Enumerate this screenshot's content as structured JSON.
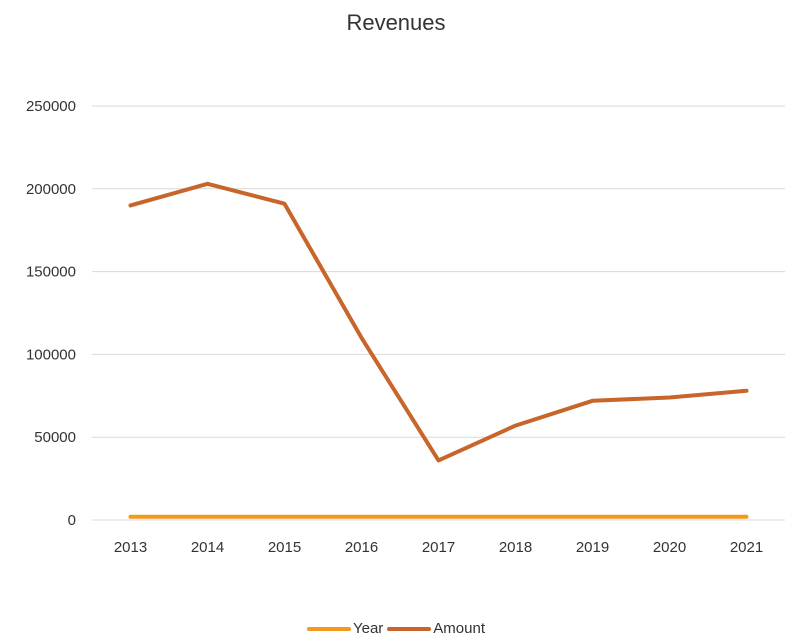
{
  "chart_data": {
    "type": "line",
    "title": "Revenues",
    "xlabel": "",
    "ylabel": "",
    "categories": [
      "2013",
      "2014",
      "2015",
      "2016",
      "2017",
      "2018",
      "2019",
      "2020",
      "2021"
    ],
    "ylim": [
      0,
      250000
    ],
    "yticks": [
      "0",
      "50000",
      "100000",
      "150000",
      "200000",
      "250000"
    ],
    "grid": true,
    "legend_position": "bottom",
    "series": [
      {
        "name": "Year",
        "color": "#f39a1e",
        "values": [
          2013,
          2014,
          2015,
          2016,
          2017,
          2018,
          2019,
          2020,
          2021
        ]
      },
      {
        "name": "Amount",
        "color": "#c8652a",
        "values": [
          190000,
          203000,
          191000,
          110000,
          36000,
          57000,
          72000,
          74000,
          78000
        ]
      }
    ]
  }
}
